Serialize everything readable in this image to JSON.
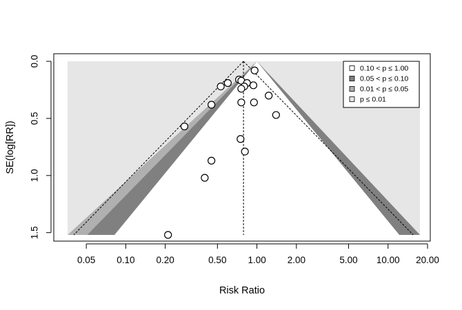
{
  "chart_data": {
    "type": "scatter",
    "subtype": "contour-enhanced funnel plot",
    "xlabel": "Risk Ratio",
    "ylabel": "SE(log[RR])",
    "x_scale": "log",
    "xlim": [
      0.036,
      17.5
    ],
    "ylim": [
      1.52,
      0.0
    ],
    "x_ticks": [
      0.05,
      0.1,
      0.2,
      0.5,
      1.0,
      2.0,
      5.0,
      10.0,
      20.0
    ],
    "x_tick_labels": [
      "0.05",
      "0.10",
      "0.20",
      "0.50",
      "1.00",
      "2.00",
      "5.00",
      "10.00",
      "20.00"
    ],
    "y_ticks": [
      0.0,
      0.5,
      1.0,
      1.5
    ],
    "y_tick_labels": [
      "0.0",
      "0.5",
      "1.0",
      "1.5"
    ],
    "reference_value": 1.0,
    "pooled_estimate": 0.79,
    "legend_position": "top-right",
    "contours": [
      {
        "label": "0.10 < p ≤ 1.00",
        "z": 1.645,
        "color": "#ffffff"
      },
      {
        "label": "0.05 < p ≤ 0.10",
        "z": 1.96,
        "color": "#808080"
      },
      {
        "label": "0.01 < p ≤ 0.05",
        "z": 2.576,
        "color": "#b0b0b0"
      },
      {
        "label": "p ≤ 0.01",
        "z": null,
        "color": "#e6e6e6"
      }
    ],
    "points": [
      {
        "rr": 0.96,
        "se": 0.08
      },
      {
        "rr": 0.73,
        "se": 0.16
      },
      {
        "rr": 0.76,
        "se": 0.17
      },
      {
        "rr": 0.6,
        "se": 0.19
      },
      {
        "rr": 0.84,
        "se": 0.19
      },
      {
        "rr": 0.8,
        "se": 0.22
      },
      {
        "rr": 0.94,
        "se": 0.21
      },
      {
        "rr": 0.53,
        "se": 0.22
      },
      {
        "rr": 0.76,
        "se": 0.24
      },
      {
        "rr": 1.23,
        "se": 0.3
      },
      {
        "rr": 0.76,
        "se": 0.36
      },
      {
        "rr": 0.95,
        "se": 0.36
      },
      {
        "rr": 0.45,
        "se": 0.38
      },
      {
        "rr": 1.4,
        "se": 0.47
      },
      {
        "rr": 0.28,
        "se": 0.57
      },
      {
        "rr": 0.75,
        "se": 0.68
      },
      {
        "rr": 0.81,
        "se": 0.79
      },
      {
        "rr": 0.45,
        "se": 0.87
      },
      {
        "rr": 0.4,
        "se": 1.02
      },
      {
        "rr": 0.21,
        "se": 1.52
      }
    ]
  }
}
